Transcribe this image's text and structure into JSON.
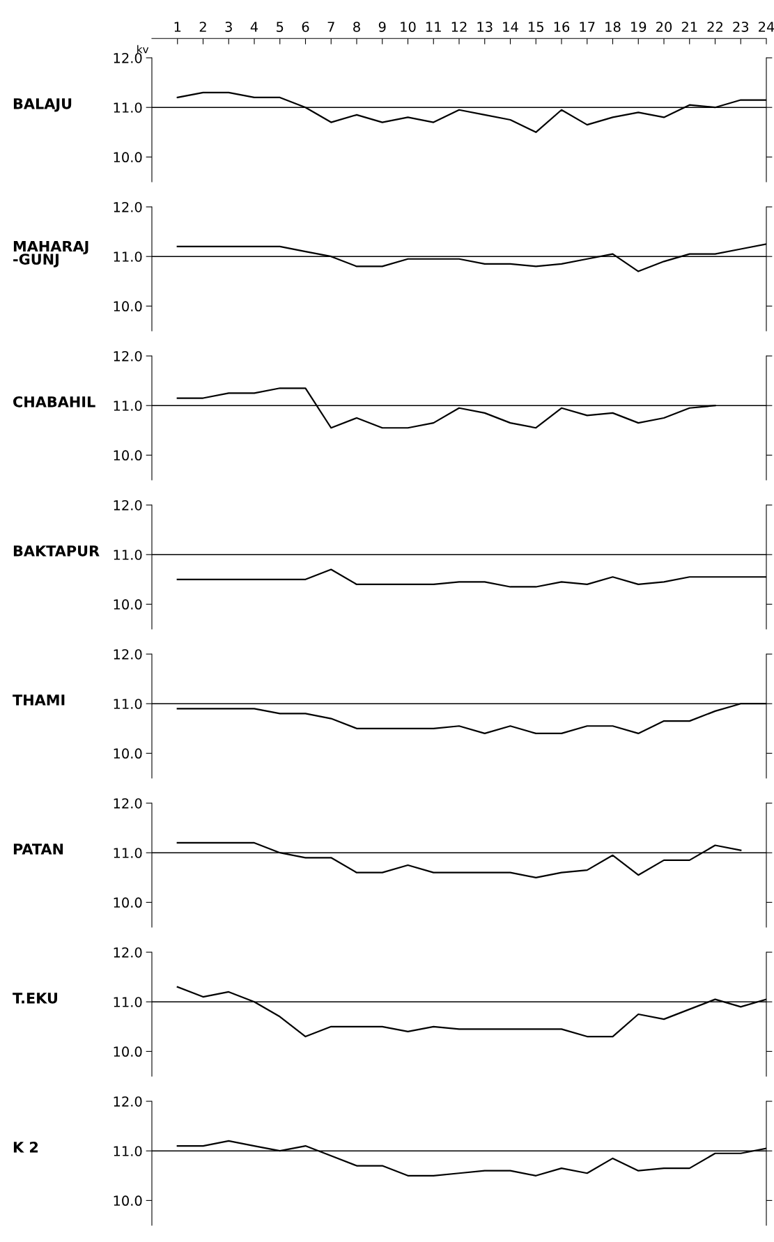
{
  "chart_data": [
    {
      "type": "line",
      "title": "BALAJU",
      "ylabel": "kv",
      "xlim": [
        0,
        24
      ],
      "xticks": [
        1,
        2,
        3,
        4,
        5,
        6,
        7,
        8,
        9,
        10,
        11,
        12,
        13,
        14,
        15,
        16,
        17,
        18,
        19,
        20,
        21,
        22,
        23,
        24
      ],
      "ylim": [
        9.5,
        12.0
      ],
      "yticks": [
        {
          "value": 12.0,
          "label": "12.0"
        },
        {
          "value": 11.0,
          "label": "11.0"
        },
        {
          "value": 10.0,
          "label": "10.0"
        }
      ],
      "grid": false,
      "ref_lines": [
        {
          "axis": "y",
          "value": 11.0,
          "color": "#000000"
        }
      ],
      "series": [
        {
          "color": "#000000",
          "x": [
            1,
            2,
            3,
            4,
            5,
            6,
            7,
            8,
            9,
            10,
            11,
            12,
            13,
            14,
            15,
            16,
            17,
            18,
            19,
            20,
            21,
            22,
            23,
            24
          ],
          "values": [
            11.2,
            11.3,
            11.3,
            11.2,
            11.2,
            11.0,
            10.7,
            10.85,
            10.7,
            10.8,
            10.7,
            10.95,
            10.85,
            10.75,
            10.5,
            10.95,
            10.65,
            10.8,
            10.9,
            10.8,
            11.05,
            11.0,
            11.15,
            11.15
          ]
        }
      ]
    },
    {
      "type": "line",
      "title": "MAHARAJ\n-GUNJ",
      "tick_labels": "y",
      "xlim": [
        0,
        24
      ],
      "ylim": [
        9.5,
        12.0
      ],
      "yticks": [
        {
          "value": 12.0,
          "label": "12.0"
        },
        {
          "value": 11.0,
          "label": "11.0"
        },
        {
          "value": 10.0,
          "label": "10.0"
        }
      ],
      "grid": false,
      "ref_lines": [
        {
          "axis": "y",
          "value": 11.0,
          "color": "#000000"
        }
      ],
      "series": [
        {
          "color": "#000000",
          "x": [
            1,
            2,
            3,
            4,
            5,
            6,
            7,
            8,
            9,
            10,
            11,
            12,
            13,
            14,
            15,
            16,
            17,
            18,
            19,
            20,
            21,
            22,
            23,
            24
          ],
          "values": [
            11.2,
            11.2,
            11.2,
            11.2,
            11.2,
            11.1,
            11.0,
            10.8,
            10.8,
            10.95,
            10.95,
            10.95,
            10.85,
            10.85,
            10.8,
            10.85,
            10.95,
            11.05,
            10.7,
            10.9,
            11.05,
            11.05,
            11.15,
            11.25
          ]
        }
      ]
    },
    {
      "type": "line",
      "title": "CHABAHIL",
      "tick_labels": "y",
      "xlim": [
        0,
        24
      ],
      "ylim": [
        9.5,
        12.0
      ],
      "yticks": [
        {
          "value": 12.0,
          "label": "12.0"
        },
        {
          "value": 11.0,
          "label": "11.0"
        },
        {
          "value": 10.0,
          "label": "10.0"
        }
      ],
      "grid": false,
      "ref_lines": [
        {
          "axis": "y",
          "value": 11.0,
          "color": "#000000"
        }
      ],
      "series": [
        {
          "color": "#000000",
          "x": [
            1,
            2,
            3,
            4,
            5,
            6,
            7,
            8,
            9,
            10,
            11,
            12,
            13,
            14,
            15,
            16,
            17,
            18,
            19,
            20,
            21,
            22
          ],
          "values": [
            11.15,
            11.15,
            11.25,
            11.25,
            11.35,
            11.35,
            10.55,
            10.75,
            10.55,
            10.55,
            10.65,
            10.95,
            10.85,
            10.65,
            10.55,
            10.95,
            10.8,
            10.85,
            10.65,
            10.75,
            10.95,
            11.0
          ]
        }
      ]
    },
    {
      "type": "line",
      "title": "BAKTAPUR",
      "tick_labels": "y",
      "xlim": [
        0,
        24
      ],
      "ylim": [
        9.5,
        12.0
      ],
      "yticks": [
        {
          "value": 12.0,
          "label": "12.0"
        },
        {
          "value": 11.0,
          "label": "11.0"
        },
        {
          "value": 10.0,
          "label": "10.0"
        }
      ],
      "grid": false,
      "ref_lines": [
        {
          "axis": "y",
          "value": 11.0,
          "color": "#000000"
        }
      ],
      "series": [
        {
          "color": "#000000",
          "x": [
            1,
            2,
            3,
            4,
            5,
            6,
            7,
            8,
            9,
            10,
            11,
            12,
            13,
            14,
            15,
            16,
            17,
            18,
            19,
            20,
            21,
            22,
            23,
            24
          ],
          "values": [
            10.5,
            10.5,
            10.5,
            10.5,
            10.5,
            10.5,
            10.7,
            10.4,
            10.4,
            10.4,
            10.4,
            10.45,
            10.45,
            10.35,
            10.35,
            10.45,
            10.4,
            10.55,
            10.4,
            10.45,
            10.55,
            10.55,
            10.55,
            10.55
          ]
        }
      ]
    },
    {
      "type": "line",
      "title": "THAMI",
      "tick_labels": "y",
      "xlim": [
        0,
        24
      ],
      "ylim": [
        9.5,
        12.0
      ],
      "yticks": [
        {
          "value": 12.0,
          "label": "12.0"
        },
        {
          "value": 11.0,
          "label": "11.0"
        },
        {
          "value": 10.0,
          "label": "10.0"
        }
      ],
      "grid": false,
      "ref_lines": [
        {
          "axis": "y",
          "value": 11.0,
          "color": "#000000"
        }
      ],
      "series": [
        {
          "color": "#000000",
          "x": [
            1,
            2,
            3,
            4,
            5,
            6,
            7,
            8,
            9,
            10,
            11,
            12,
            13,
            14,
            15,
            16,
            17,
            18,
            19,
            20,
            21,
            22,
            23,
            24
          ],
          "values": [
            10.9,
            10.9,
            10.9,
            10.9,
            10.8,
            10.8,
            10.7,
            10.5,
            10.5,
            10.5,
            10.5,
            10.55,
            10.4,
            10.55,
            10.4,
            10.4,
            10.55,
            10.55,
            10.4,
            10.65,
            10.65,
            10.85,
            11.0,
            11.0
          ]
        }
      ]
    },
    {
      "type": "line",
      "title": "PATAN",
      "tick_labels": "y",
      "xlim": [
        0,
        24
      ],
      "ylim": [
        9.5,
        12.0
      ],
      "yticks": [
        {
          "value": 12.0,
          "label": "12.0"
        },
        {
          "value": 11.0,
          "label": "11.0"
        },
        {
          "value": 10.0,
          "label": "10.0"
        }
      ],
      "grid": false,
      "ref_lines": [
        {
          "axis": "y",
          "value": 11.0,
          "color": "#000000"
        }
      ],
      "series": [
        {
          "color": "#000000",
          "x": [
            1,
            2,
            3,
            4,
            5,
            6,
            7,
            8,
            9,
            10,
            11,
            12,
            13,
            14,
            15,
            16,
            17,
            18,
            19,
            20,
            21,
            22,
            23
          ],
          "values": [
            11.2,
            11.2,
            11.2,
            11.2,
            11.0,
            10.9,
            10.9,
            10.6,
            10.6,
            10.75,
            10.6,
            10.6,
            10.6,
            10.6,
            10.5,
            10.6,
            10.65,
            10.95,
            10.55,
            10.85,
            10.85,
            11.15,
            11.05
          ]
        }
      ]
    },
    {
      "type": "line",
      "title": "T.EKU",
      "tick_labels": "y",
      "xlim": [
        0,
        24
      ],
      "ylim": [
        9.5,
        12.0
      ],
      "yticks": [
        {
          "value": 12.0,
          "label": "12.0"
        },
        {
          "value": 11.0,
          "label": "11.0"
        },
        {
          "value": 10.0,
          "label": "10.0"
        }
      ],
      "grid": false,
      "ref_lines": [
        {
          "axis": "y",
          "value": 11.0,
          "color": "#000000"
        }
      ],
      "series": [
        {
          "color": "#000000",
          "x": [
            1,
            2,
            3,
            4,
            5,
            6,
            7,
            8,
            9,
            10,
            11,
            12,
            13,
            14,
            15,
            16,
            17,
            18,
            19,
            20,
            21,
            22,
            23,
            24
          ],
          "values": [
            11.3,
            11.1,
            11.2,
            11.0,
            10.7,
            10.3,
            10.5,
            10.5,
            10.5,
            10.4,
            10.5,
            10.45,
            10.45,
            10.45,
            10.45,
            10.45,
            10.3,
            10.3,
            10.75,
            10.65,
            10.85,
            11.05,
            10.9,
            11.05
          ]
        }
      ]
    },
    {
      "type": "line",
      "title": "K 2",
      "tick_labels": "y",
      "xlim": [
        0,
        24
      ],
      "ylim": [
        9.5,
        12.0
      ],
      "yticks": [
        {
          "value": 12.0,
          "label": "12.0"
        },
        {
          "value": 11.0,
          "label": "11.0"
        },
        {
          "value": 10.0,
          "label": "10.0"
        }
      ],
      "grid": false,
      "ref_lines": [
        {
          "axis": "y",
          "value": 11.0,
          "color": "#000000"
        }
      ],
      "series": [
        {
          "color": "#000000",
          "x": [
            1,
            2,
            3,
            4,
            5,
            6,
            7,
            8,
            9,
            10,
            11,
            12,
            13,
            14,
            15,
            16,
            17,
            18,
            19,
            20,
            21,
            22,
            23,
            24
          ],
          "values": [
            11.1,
            11.1,
            11.2,
            11.1,
            11.0,
            11.1,
            10.9,
            10.7,
            10.7,
            10.5,
            10.5,
            10.55,
            10.6,
            10.6,
            10.5,
            10.65,
            10.55,
            10.85,
            10.6,
            10.65,
            10.65,
            10.95,
            10.95,
            11.05
          ]
        }
      ]
    }
  ]
}
